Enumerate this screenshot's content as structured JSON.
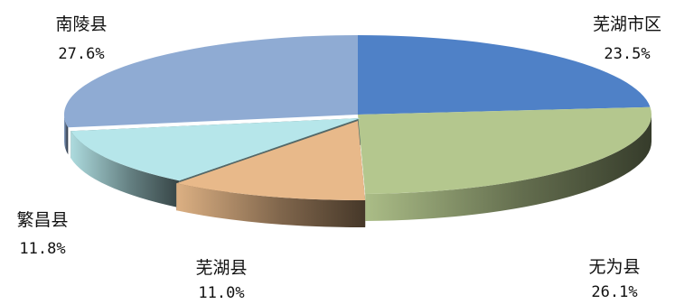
{
  "chart_data": {
    "type": "pie",
    "style": "3d-exploded",
    "legend": "none",
    "slices": [
      {
        "label": "芜湖市区",
        "value": 23.5,
        "value_label": "23.5%",
        "color": "#4f81c7"
      },
      {
        "label": "无为县",
        "value": 26.1,
        "value_label": "26.1%",
        "color": "#b4c78e"
      },
      {
        "label": "芜湖县",
        "value": 11.0,
        "value_label": "11.0%",
        "color": "#e8b98a"
      },
      {
        "label": "繁昌县",
        "value": 11.8,
        "value_label": "11.8%",
        "color": "#b6e6ea"
      },
      {
        "label": "南陵县",
        "value": 27.6,
        "value_label": "27.6%",
        "color": "#8fabd3"
      }
    ]
  }
}
